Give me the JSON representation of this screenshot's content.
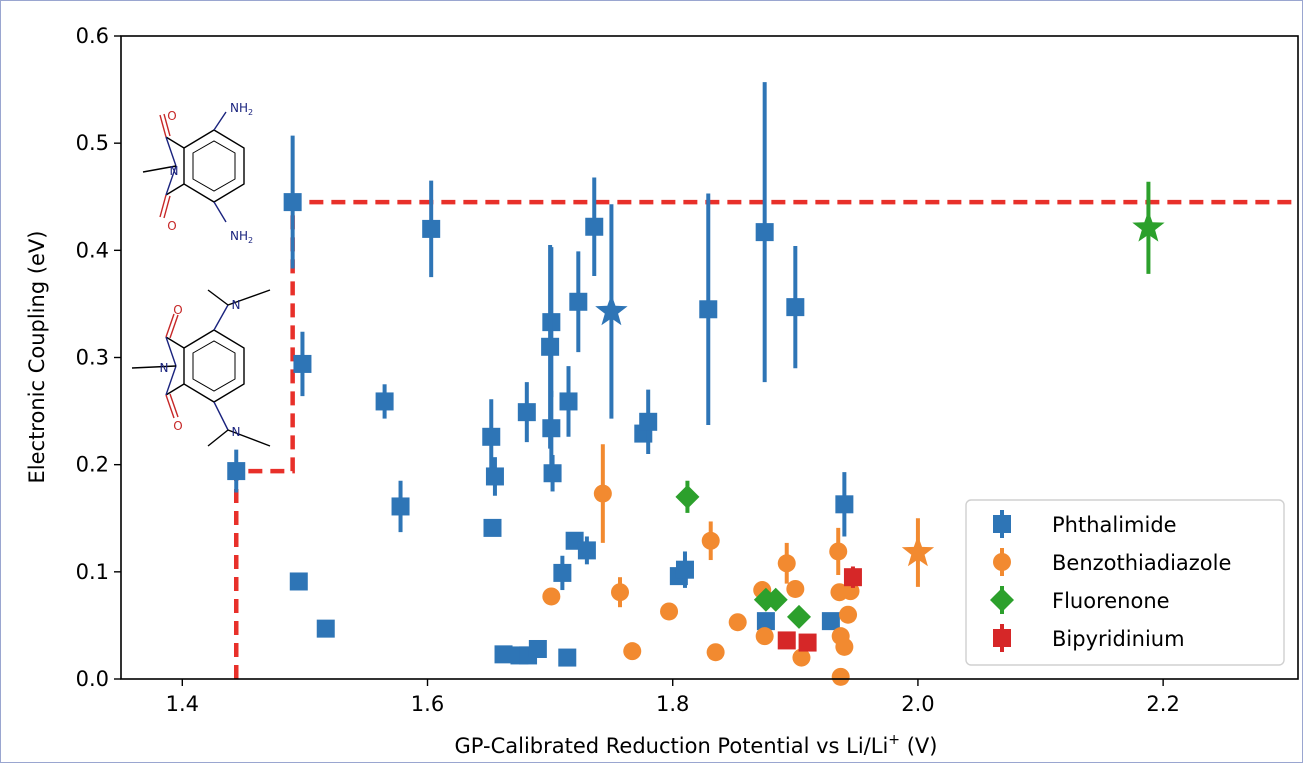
{
  "chart_data": {
    "type": "scatter",
    "xlabel": "GP-Calibrated Reduction Potential vs Li/Li",
    "xlabel_sup": "+",
    "xlabel_unit": " (V)",
    "ylabel": "Electronic Coupling (eV)",
    "xlim": [
      1.35,
      2.31
    ],
    "ylim": [
      0.0,
      0.6
    ],
    "xticks": [
      "1.4",
      "1.6",
      "1.8",
      "2.0",
      "2.2"
    ],
    "xtick_values": [
      1.4,
      1.6,
      1.8,
      2.0,
      2.2
    ],
    "yticks": [
      "0.0",
      "0.1",
      "0.2",
      "0.3",
      "0.4",
      "0.5",
      "0.6"
    ],
    "ytick_values": [
      0.0,
      0.1,
      0.2,
      0.3,
      0.4,
      0.5,
      0.6
    ],
    "grid": false,
    "legend_position": "lower-right",
    "pareto_front": {
      "color": "#e8302a",
      "points": [
        [
          1.444,
          0.0
        ],
        [
          1.444,
          0.194
        ],
        [
          1.49,
          0.194
        ],
        [
          1.49,
          0.445
        ],
        [
          2.31,
          0.445
        ]
      ]
    },
    "molecule_labels": {
      "nh2_top": "NH",
      "nh2_sub": "2",
      "n": "N",
      "o": "O"
    },
    "series": [
      {
        "name": "Phthalimide",
        "color": "#2e75b6",
        "marker": "square",
        "points": [
          {
            "x": 1.444,
            "y": 0.194,
            "err": 0.02
          },
          {
            "x": 1.49,
            "y": 0.445,
            "err": 0.062
          },
          {
            "x": 1.498,
            "y": 0.294,
            "err": 0.03
          },
          {
            "x": 1.495,
            "y": 0.091,
            "err": 0.0
          },
          {
            "x": 1.517,
            "y": 0.047,
            "err": 0.0
          },
          {
            "x": 1.565,
            "y": 0.259,
            "err": 0.016
          },
          {
            "x": 1.578,
            "y": 0.161,
            "err": 0.024
          },
          {
            "x": 1.603,
            "y": 0.42,
            "err": 0.045
          },
          {
            "x": 1.652,
            "y": 0.226,
            "err": 0.035
          },
          {
            "x": 1.655,
            "y": 0.189,
            "err": 0.018
          },
          {
            "x": 1.653,
            "y": 0.141,
            "err": 0.0
          },
          {
            "x": 1.662,
            "y": 0.023,
            "err": 0.0
          },
          {
            "x": 1.675,
            "y": 0.022,
            "err": 0.0
          },
          {
            "x": 1.682,
            "y": 0.022,
            "err": 0.0
          },
          {
            "x": 1.69,
            "y": 0.028,
            "err": 0.0
          },
          {
            "x": 1.681,
            "y": 0.249,
            "err": 0.028
          },
          {
            "x": 1.701,
            "y": 0.333,
            "err": 0.07
          },
          {
            "x": 1.7,
            "y": 0.31,
            "err": 0.095
          },
          {
            "x": 1.701,
            "y": 0.234,
            "err": 0.035
          },
          {
            "x": 1.702,
            "y": 0.192,
            "err": 0.017
          },
          {
            "x": 1.71,
            "y": 0.099,
            "err": 0.016
          },
          {
            "x": 1.714,
            "y": 0.02,
            "err": 0.0
          },
          {
            "x": 1.715,
            "y": 0.259,
            "err": 0.033
          },
          {
            "x": 1.72,
            "y": 0.129,
            "err": 0.0
          },
          {
            "x": 1.73,
            "y": 0.12,
            "err": 0.013
          },
          {
            "x": 1.723,
            "y": 0.352,
            "err": 0.047
          },
          {
            "x": 1.736,
            "y": 0.422,
            "err": 0.046
          },
          {
            "x": 1.776,
            "y": 0.229,
            "err": 0.0
          },
          {
            "x": 1.78,
            "y": 0.24,
            "err": 0.03
          },
          {
            "x": 1.805,
            "y": 0.096,
            "err": 0.0
          },
          {
            "x": 1.81,
            "y": 0.102,
            "err": 0.017
          },
          {
            "x": 1.829,
            "y": 0.345,
            "err": 0.108
          },
          {
            "x": 1.875,
            "y": 0.417,
            "err": 0.14
          },
          {
            "x": 1.9,
            "y": 0.347,
            "err": 0.057
          },
          {
            "x": 1.876,
            "y": 0.054,
            "err": 0.0
          },
          {
            "x": 1.929,
            "y": 0.054,
            "err": 0.0
          },
          {
            "x": 1.94,
            "y": 0.163,
            "err": 0.03
          },
          {
            "x": 1.75,
            "y": 0.343,
            "err": 0.1,
            "star": true
          }
        ]
      },
      {
        "name": "Benzothiadiazole",
        "color": "#f28a30",
        "marker": "circle",
        "points": [
          {
            "x": 1.743,
            "y": 0.173,
            "err": 0.046
          },
          {
            "x": 1.701,
            "y": 0.077,
            "err": 0.0
          },
          {
            "x": 1.757,
            "y": 0.081,
            "err": 0.014
          },
          {
            "x": 1.767,
            "y": 0.026,
            "err": 0.0
          },
          {
            "x": 1.797,
            "y": 0.063,
            "err": 0.0
          },
          {
            "x": 1.831,
            "y": 0.129,
            "err": 0.018
          },
          {
            "x": 1.835,
            "y": 0.025,
            "err": 0.0
          },
          {
            "x": 1.853,
            "y": 0.053,
            "err": 0.0
          },
          {
            "x": 1.873,
            "y": 0.083,
            "err": 0.008
          },
          {
            "x": 1.875,
            "y": 0.04,
            "err": 0.0
          },
          {
            "x": 1.893,
            "y": 0.108,
            "err": 0.019
          },
          {
            "x": 1.9,
            "y": 0.084,
            "err": 0.0
          },
          {
            "x": 1.905,
            "y": 0.02,
            "err": 0.0
          },
          {
            "x": 1.935,
            "y": 0.119,
            "err": 0.022
          },
          {
            "x": 1.936,
            "y": 0.081,
            "err": 0.0
          },
          {
            "x": 1.937,
            "y": 0.04,
            "err": 0.0
          },
          {
            "x": 1.94,
            "y": 0.03,
            "err": 0.0
          },
          {
            "x": 1.937,
            "y": 0.002,
            "err": 0.0
          },
          {
            "x": 1.945,
            "y": 0.082,
            "err": 0.0
          },
          {
            "x": 1.943,
            "y": 0.06,
            "err": 0.0
          },
          {
            "x": 2.0,
            "y": 0.118,
            "err": 0.032,
            "star": true
          }
        ]
      },
      {
        "name": "Fluorenone",
        "color": "#2ca02c",
        "marker": "diamond",
        "points": [
          {
            "x": 1.812,
            "y": 0.17,
            "err": 0.015
          },
          {
            "x": 1.876,
            "y": 0.074,
            "err": 0.0
          },
          {
            "x": 1.884,
            "y": 0.074,
            "err": 0.0
          },
          {
            "x": 1.903,
            "y": 0.058,
            "err": 0.0
          },
          {
            "x": 2.188,
            "y": 0.421,
            "err": 0.043,
            "star": true
          }
        ]
      },
      {
        "name": "Bipyridinium",
        "color": "#d62728",
        "marker": "square",
        "points": [
          {
            "x": 1.893,
            "y": 0.036,
            "err": 0.0
          },
          {
            "x": 1.91,
            "y": 0.034,
            "err": 0.0
          },
          {
            "x": 1.947,
            "y": 0.095,
            "err": 0.01
          }
        ]
      }
    ]
  }
}
